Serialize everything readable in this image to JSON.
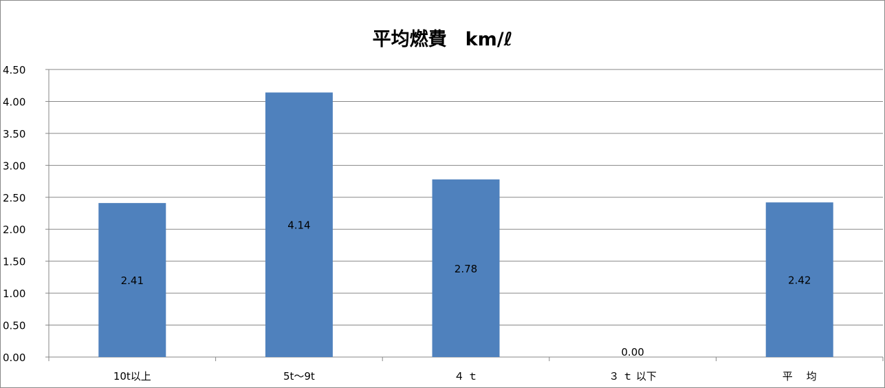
{
  "chart_data": {
    "type": "bar",
    "title": "平均燃費　km/ℓ",
    "categories": [
      "10t以上",
      "5t〜9t",
      "４ ｔ",
      "３ ｔ 以下",
      "平　 均"
    ],
    "values": [
      2.41,
      4.14,
      2.78,
      0.0,
      2.42
    ],
    "value_labels": [
      "2.41",
      "4.14",
      "2.78",
      "0.00",
      "2.42"
    ],
    "ylim": [
      0,
      4.5
    ],
    "yticks": [
      "0.00",
      "0.50",
      "1.00",
      "1.50",
      "2.00",
      "2.50",
      "3.00",
      "3.50",
      "4.00",
      "4.50"
    ],
    "grid": true,
    "legend": "none",
    "bar_color": "#4F81BD"
  }
}
